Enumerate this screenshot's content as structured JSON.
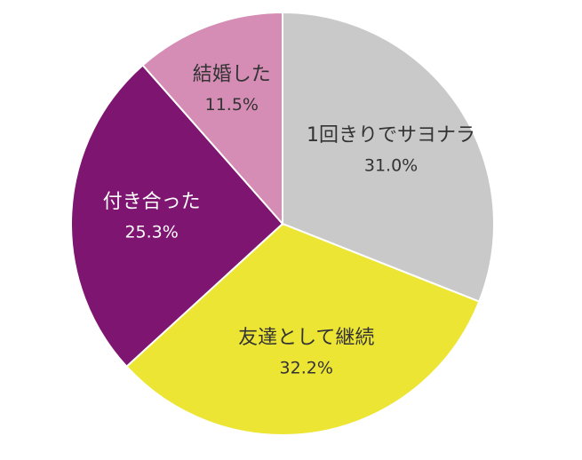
{
  "chart_data": {
    "type": "pie",
    "categories": [
      "1回きりでサヨナラ",
      "友達として継続",
      "付き合った",
      "結婚した"
    ],
    "values": [
      31.0,
      32.2,
      25.3,
      11.5
    ],
    "value_labels": [
      "31.0%",
      "32.2%",
      "25.3%",
      "11.5%"
    ],
    "colors": [
      "#c9c9c9",
      "#ede534",
      "#7e1570",
      "#d58db6"
    ]
  }
}
